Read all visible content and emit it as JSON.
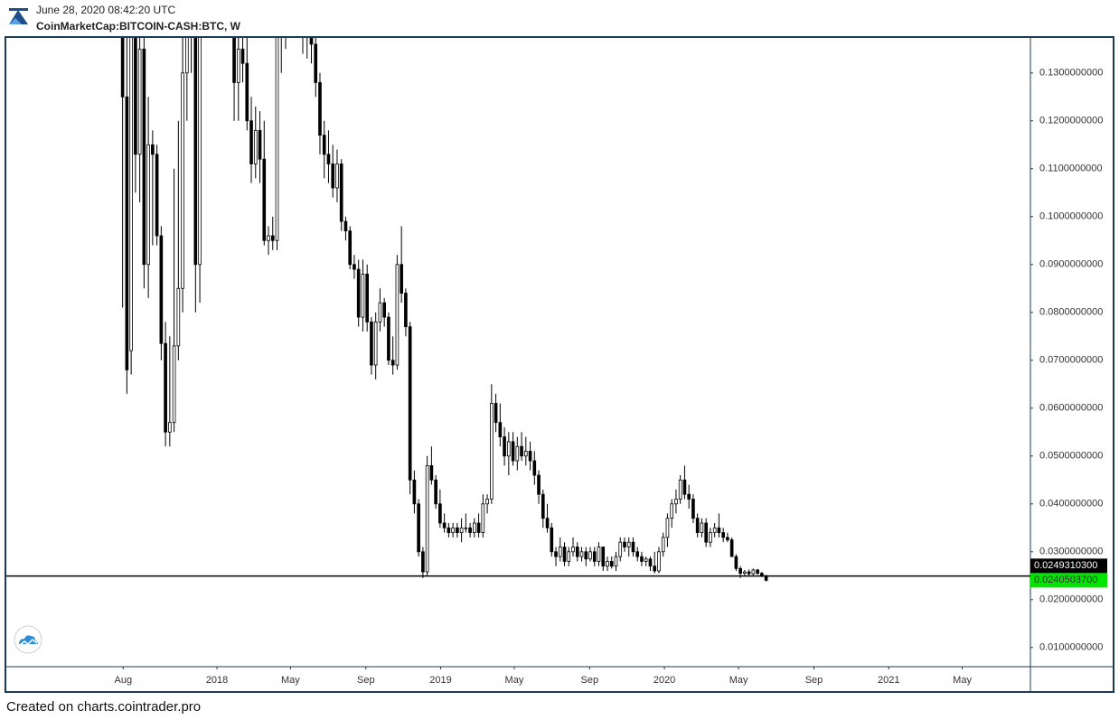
{
  "chart_data": {
    "type": "candlestick",
    "title": "CoinMarketCap:BITCOIN-CASH:BTC, W",
    "subtitle": "June 28, 2020 08:42:20 UTC",
    "caption": "Created on charts.cointrader.pro",
    "up_color": "#ffffff",
    "down_color": "#000000",
    "edge_color": "#000000",
    "grid": false,
    "xlim": [
      -27.1,
      211.6
    ],
    "xticks": [
      {
        "value": 0.14,
        "label": "Aug"
      },
      {
        "value": 22,
        "label": "2018"
      },
      {
        "value": 39.14,
        "label": "May"
      },
      {
        "value": 56.71,
        "label": "Sep"
      },
      {
        "value": 74.14,
        "label": "2019"
      },
      {
        "value": 91.29,
        "label": "May"
      },
      {
        "value": 108.86,
        "label": "Sep"
      },
      {
        "value": 126.29,
        "label": "2020"
      },
      {
        "value": 143.57,
        "label": "May"
      },
      {
        "value": 161.14,
        "label": "Sep"
      },
      {
        "value": 178.57,
        "label": "2021"
      },
      {
        "value": 195.71,
        "label": "May"
      }
    ],
    "ylim": [
      0.006,
      0.1375
    ],
    "yticks": [
      {
        "value": 0.01,
        "label": "0.0100000000"
      },
      {
        "value": 0.02,
        "label": "0.0200000000"
      },
      {
        "value": 0.03,
        "label": "0.0300000000"
      },
      {
        "value": 0.04,
        "label": "0.0400000000"
      },
      {
        "value": 0.05,
        "label": "0.0500000000"
      },
      {
        "value": 0.06,
        "label": "0.0600000000"
      },
      {
        "value": 0.07,
        "label": "0.0700000000"
      },
      {
        "value": 0.08,
        "label": "0.0800000000"
      },
      {
        "value": 0.09,
        "label": "0.0900000000"
      },
      {
        "value": 0.1,
        "label": "0.1000000000"
      },
      {
        "value": 0.11,
        "label": "0.1100000000"
      },
      {
        "value": 0.12,
        "label": "0.1200000000"
      },
      {
        "value": 0.13,
        "label": "0.1300000000"
      }
    ],
    "horizontal_line": {
      "value": 0.02493103,
      "label": "0.0249310300",
      "color": "#000000"
    },
    "last_price": {
      "value": 0.02405037,
      "label": "0.0240503700",
      "color": "#00e600"
    },
    "x": [
      0,
      1,
      2,
      3,
      4,
      5,
      6,
      7,
      8,
      9,
      10,
      11,
      12,
      13,
      14,
      15,
      16,
      17,
      18,
      19,
      20,
      21,
      22,
      23,
      24,
      25,
      26,
      27,
      28,
      29,
      30,
      31,
      32,
      33,
      34,
      35,
      36,
      37,
      38,
      39,
      40,
      41,
      42,
      43,
      44,
      45,
      46,
      47,
      48,
      49,
      50,
      51,
      52,
      53,
      54,
      55,
      56,
      57,
      58,
      59,
      60,
      61,
      62,
      63,
      64,
      65,
      66,
      67,
      68,
      69,
      70,
      71,
      72,
      73,
      74,
      75,
      76,
      77,
      78,
      79,
      80,
      81,
      82,
      83,
      84,
      85,
      86,
      87,
      88,
      89,
      90,
      91,
      92,
      93,
      94,
      95,
      96,
      97,
      98,
      99,
      100,
      101,
      102,
      103,
      104,
      105,
      106,
      107,
      108,
      109,
      110,
      111,
      112,
      113,
      114,
      115,
      116,
      117,
      118,
      119,
      120,
      121,
      122,
      123,
      124,
      125,
      126,
      127,
      128,
      129,
      130,
      131,
      132,
      133,
      134,
      135,
      136,
      137,
      138,
      139,
      140,
      141,
      142,
      143,
      144,
      145,
      146,
      147,
      148,
      149,
      150
    ],
    "open": [
      0.14,
      0.125,
      0.072,
      0.16,
      0.113,
      0.135,
      0.09,
      0.115,
      0.113,
      0.096,
      0.0735,
      0.055,
      0.057,
      0.073,
      0.085,
      0.13,
      0.18,
      0.15,
      0.09,
      0.16,
      0.2,
      0.18,
      0.17,
      0.16,
      0.15,
      0.16,
      0.145,
      0.128,
      0.135,
      0.132,
      0.12,
      0.111,
      0.118,
      0.112,
      0.095,
      0.096,
      0.095,
      0.14,
      0.145,
      0.16,
      0.18,
      0.16,
      0.15,
      0.138,
      0.14,
      0.136,
      0.128,
      0.117,
      0.113,
      0.111,
      0.106,
      0.111,
      0.099,
      0.097,
      0.09,
      0.089,
      0.079,
      0.088,
      0.078,
      0.069,
      0.078,
      0.082,
      0.079,
      0.07,
      0.069,
      0.09,
      0.084,
      0.077,
      0.045,
      0.04,
      0.03,
      0.0258,
      0.048,
      0.045,
      0.04,
      0.036,
      0.035,
      0.034,
      0.035,
      0.034,
      0.035,
      0.035,
      0.034,
      0.036,
      0.034,
      0.04,
      0.041,
      0.061,
      0.057,
      0.054,
      0.05,
      0.053,
      0.049,
      0.052,
      0.05,
      0.051,
      0.049,
      0.046,
      0.042,
      0.037,
      0.035,
      0.03,
      0.029,
      0.031,
      0.028,
      0.03,
      0.031,
      0.029,
      0.03,
      0.0285,
      0.03,
      0.028,
      0.031,
      0.027,
      0.028,
      0.027,
      0.029,
      0.032,
      0.031,
      0.032,
      0.03,
      0.029,
      0.028,
      0.0285,
      0.027,
      0.026,
      0.03,
      0.033,
      0.037,
      0.04,
      0.041,
      0.045,
      0.042,
      0.041,
      0.037,
      0.034,
      0.036,
      0.032,
      0.034,
      0.035,
      0.034,
      0.033,
      0.0325,
      0.029,
      0.0265,
      0.0255,
      0.0258,
      0.0254,
      0.0262,
      0.0255,
      0.025
    ],
    "high": [
      0.2,
      0.16,
      0.24,
      0.165,
      0.14,
      0.145,
      0.125,
      0.118,
      0.115,
      0.098,
      0.078,
      0.075,
      0.11,
      0.12,
      0.2,
      0.5,
      0.19,
      0.155,
      0.2,
      0.25,
      0.23,
      0.21,
      0.19,
      0.18,
      0.17,
      0.165,
      0.155,
      0.14,
      0.14,
      0.138,
      0.125,
      0.123,
      0.122,
      0.12,
      0.098,
      0.1,
      0.15,
      0.16,
      0.17,
      0.2,
      0.19,
      0.17,
      0.155,
      0.142,
      0.145,
      0.14,
      0.13,
      0.12,
      0.118,
      0.115,
      0.114,
      0.112,
      0.1,
      0.098,
      0.092,
      0.091,
      0.091,
      0.09,
      0.079,
      0.08,
      0.085,
      0.083,
      0.08,
      0.075,
      0.092,
      0.098,
      0.085,
      0.078,
      0.047,
      0.041,
      0.031,
      0.05,
      0.052,
      0.046,
      0.043,
      0.038,
      0.036,
      0.036,
      0.036,
      0.037,
      0.038,
      0.036,
      0.037,
      0.038,
      0.042,
      0.042,
      0.065,
      0.063,
      0.061,
      0.056,
      0.055,
      0.055,
      0.054,
      0.055,
      0.054,
      0.053,
      0.051,
      0.047,
      0.043,
      0.04,
      0.036,
      0.031,
      0.033,
      0.032,
      0.031,
      0.033,
      0.032,
      0.031,
      0.031,
      0.031,
      0.031,
      0.032,
      0.031,
      0.029,
      0.029,
      0.03,
      0.033,
      0.033,
      0.033,
      0.033,
      0.031,
      0.03,
      0.029,
      0.029,
      0.03,
      0.031,
      0.034,
      0.038,
      0.041,
      0.043,
      0.046,
      0.048,
      0.044,
      0.042,
      0.038,
      0.037,
      0.037,
      0.035,
      0.036,
      0.038,
      0.035,
      0.034,
      0.033,
      0.0295,
      0.027,
      0.0262,
      0.0263,
      0.0265,
      0.0264,
      0.0258,
      0.0252
    ],
    "low": [
      0.081,
      0.063,
      0.067,
      0.105,
      0.103,
      0.085,
      0.083,
      0.094,
      0.094,
      0.07,
      0.052,
      0.052,
      0.055,
      0.07,
      0.08,
      0.12,
      0.13,
      0.08,
      0.082,
      0.14,
      0.16,
      0.15,
      0.14,
      0.14,
      0.14,
      0.14,
      0.12,
      0.12,
      0.128,
      0.118,
      0.107,
      0.108,
      0.107,
      0.094,
      0.092,
      0.093,
      0.093,
      0.13,
      0.135,
      0.15,
      0.15,
      0.14,
      0.134,
      0.133,
      0.132,
      0.125,
      0.113,
      0.108,
      0.107,
      0.104,
      0.103,
      0.097,
      0.095,
      0.089,
      0.087,
      0.077,
      0.076,
      0.076,
      0.067,
      0.066,
      0.076,
      0.077,
      0.069,
      0.067,
      0.068,
      0.082,
      0.075,
      0.042,
      0.038,
      0.029,
      0.0245,
      0.025,
      0.044,
      0.039,
      0.035,
      0.034,
      0.033,
      0.033,
      0.033,
      0.032,
      0.034,
      0.033,
      0.033,
      0.033,
      0.033,
      0.038,
      0.04,
      0.055,
      0.052,
      0.048,
      0.046,
      0.048,
      0.047,
      0.049,
      0.048,
      0.047,
      0.044,
      0.04,
      0.035,
      0.034,
      0.029,
      0.027,
      0.028,
      0.027,
      0.027,
      0.029,
      0.028,
      0.028,
      0.027,
      0.028,
      0.027,
      0.027,
      0.026,
      0.026,
      0.0265,
      0.026,
      0.028,
      0.03,
      0.029,
      0.029,
      0.028,
      0.027,
      0.027,
      0.026,
      0.0255,
      0.0255,
      0.029,
      0.031,
      0.035,
      0.038,
      0.04,
      0.041,
      0.039,
      0.036,
      0.033,
      0.033,
      0.031,
      0.031,
      0.033,
      0.033,
      0.032,
      0.032,
      0.029,
      0.026,
      0.0245,
      0.0248,
      0.0249,
      0.0251,
      0.0252,
      0.0247,
      0.0238
    ],
    "close": [
      0.125,
      0.068,
      0.16,
      0.113,
      0.135,
      0.09,
      0.115,
      0.113,
      0.096,
      0.0735,
      0.055,
      0.057,
      0.073,
      0.085,
      0.13,
      0.18,
      0.15,
      0.09,
      0.16,
      0.2,
      0.18,
      0.17,
      0.16,
      0.15,
      0.16,
      0.145,
      0.128,
      0.135,
      0.132,
      0.12,
      0.111,
      0.118,
      0.112,
      0.095,
      0.096,
      0.095,
      0.14,
      0.145,
      0.16,
      0.18,
      0.16,
      0.15,
      0.138,
      0.14,
      0.136,
      0.128,
      0.117,
      0.113,
      0.111,
      0.106,
      0.111,
      0.099,
      0.097,
      0.09,
      0.089,
      0.079,
      0.088,
      0.078,
      0.069,
      0.078,
      0.082,
      0.079,
      0.07,
      0.069,
      0.09,
      0.084,
      0.077,
      0.045,
      0.04,
      0.03,
      0.0258,
      0.048,
      0.045,
      0.04,
      0.036,
      0.035,
      0.034,
      0.035,
      0.034,
      0.035,
      0.035,
      0.034,
      0.036,
      0.034,
      0.04,
      0.041,
      0.061,
      0.057,
      0.054,
      0.05,
      0.053,
      0.049,
      0.052,
      0.05,
      0.051,
      0.049,
      0.046,
      0.042,
      0.037,
      0.035,
      0.03,
      0.029,
      0.031,
      0.028,
      0.03,
      0.031,
      0.029,
      0.03,
      0.0285,
      0.03,
      0.028,
      0.031,
      0.027,
      0.028,
      0.027,
      0.029,
      0.032,
      0.031,
      0.032,
      0.03,
      0.029,
      0.028,
      0.0285,
      0.027,
      0.026,
      0.03,
      0.033,
      0.037,
      0.04,
      0.041,
      0.045,
      0.042,
      0.041,
      0.037,
      0.034,
      0.036,
      0.032,
      0.034,
      0.035,
      0.034,
      0.033,
      0.0325,
      0.029,
      0.0265,
      0.0255,
      0.0258,
      0.0254,
      0.0262,
      0.0255,
      0.025,
      0.02405037
    ]
  }
}
